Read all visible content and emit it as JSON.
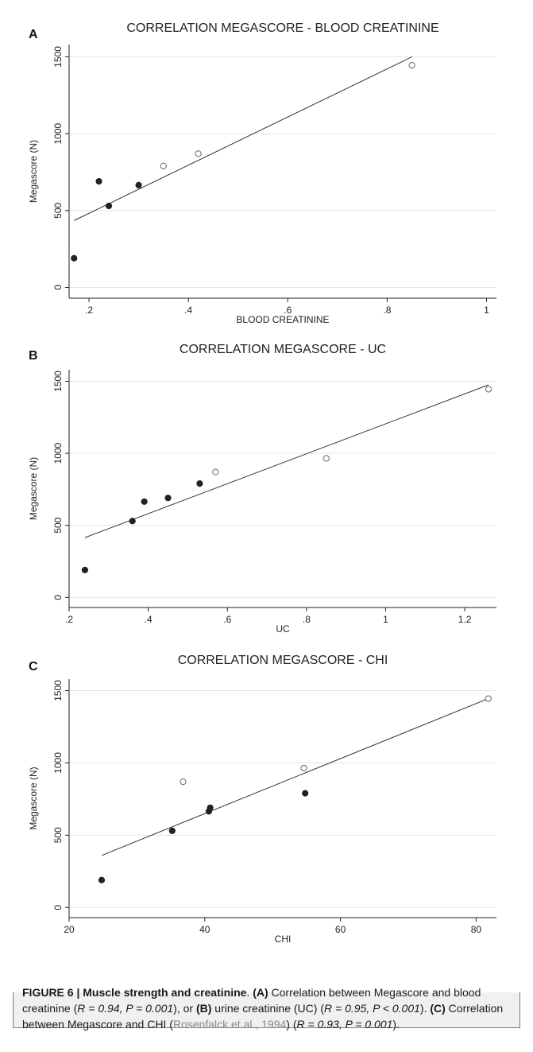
{
  "chart_data": [
    {
      "type": "scatter",
      "panel_letter": "A",
      "title": "CORRELATION MEGASCORE - BLOOD CREATININE",
      "xlabel": "BLOOD CREATININE",
      "ylabel": "Megascore (N)",
      "xlim": [
        0.16,
        1.02
      ],
      "ylim": [
        -70,
        1580
      ],
      "xticks": [
        0.2,
        0.4,
        0.6,
        0.8,
        1
      ],
      "xtick_labels": [
        ".2",
        ".4",
        ".6",
        ".8",
        "1"
      ],
      "yticks": [
        0,
        500,
        1000,
        1500
      ],
      "ytick_labels": [
        "0",
        "500",
        "1000",
        "1500"
      ],
      "grid": "horizontal",
      "series": [
        {
          "marker": "filled",
          "points": [
            [
              0.17,
              190
            ],
            [
              0.22,
              690
            ],
            [
              0.24,
              530
            ],
            [
              0.3,
              665
            ]
          ]
        },
        {
          "marker": "open",
          "points": [
            [
              0.35,
              790
            ],
            [
              0.42,
              870
            ],
            [
              0.85,
              1445
            ]
          ]
        }
      ],
      "fit_line": [
        [
          0.17,
          435
        ],
        [
          0.85,
          1500
        ]
      ]
    },
    {
      "type": "scatter",
      "panel_letter": "B",
      "title": "CORRELATION MEGASCORE - UC",
      "xlabel": "UC",
      "ylabel": "Megascore (N)",
      "xlim": [
        0.2,
        1.28
      ],
      "ylim": [
        -70,
        1580
      ],
      "xticks": [
        0.2,
        0.4,
        0.6,
        0.8,
        1,
        1.2
      ],
      "xtick_labels": [
        ".2",
        ".4",
        ".6",
        ".8",
        "1",
        "1.2"
      ],
      "yticks": [
        0,
        500,
        1000,
        1500
      ],
      "ytick_labels": [
        "0",
        "500",
        "1000",
        "1500"
      ],
      "grid": "horizontal",
      "series": [
        {
          "marker": "filled",
          "points": [
            [
              0.24,
              190
            ],
            [
              0.36,
              530
            ],
            [
              0.39,
              665
            ],
            [
              0.45,
              690
            ],
            [
              0.53,
              790
            ]
          ]
        },
        {
          "marker": "open",
          "points": [
            [
              0.57,
              870
            ],
            [
              0.85,
              965
            ],
            [
              1.26,
              1445
            ]
          ]
        }
      ],
      "fit_line": [
        [
          0.24,
          415
        ],
        [
          1.26,
          1475
        ]
      ]
    },
    {
      "type": "scatter",
      "panel_letter": "C",
      "title": "CORRELATION MEGASCORE - CHI",
      "xlabel": "CHI",
      "ylabel": "Megascore (N)",
      "xlim": [
        20,
        83
      ],
      "ylim": [
        -70,
        1580
      ],
      "xticks": [
        20,
        40,
        60,
        80
      ],
      "xtick_labels": [
        "20",
        "40",
        "60",
        "80"
      ],
      "yticks": [
        0,
        500,
        1000,
        1500
      ],
      "ytick_labels": [
        "0",
        "500",
        "1000",
        "1500"
      ],
      "grid": "horizontal",
      "series": [
        {
          "marker": "filled",
          "points": [
            [
              24.8,
              190
            ],
            [
              35.2,
              530
            ],
            [
              40.6,
              665
            ],
            [
              40.8,
              690
            ],
            [
              54.8,
              790
            ]
          ]
        },
        {
          "marker": "open",
          "points": [
            [
              36.8,
              870
            ],
            [
              54.6,
              965
            ],
            [
              81.8,
              1445
            ]
          ]
        }
      ],
      "fit_line": [
        [
          24.8,
          360
        ],
        [
          81.8,
          1445
        ]
      ]
    }
  ],
  "caption": {
    "figure_label": "FIGURE 6 | Muscle strength and creatinine",
    "after_label": ". ",
    "a_label": "(A)",
    "text_1": " Correlation between Megascore and blood creatinine (",
    "stat_1": "R = 0.94, P = 0.001",
    "text_2": "), or ",
    "b_label": "(B)",
    "text_3": " urine creatinine (UC) (",
    "stat_2": "R = 0.95, P < 0.001",
    "text_4": "). ",
    "c_label": "(C)",
    "text_5": " Correlation between Megascore and CHI (",
    "reference": "Rosenfalck et al., 1994",
    "text_6": ") (",
    "stat_3": "R = 0.93, P = 0.001",
    "text_7": ")."
  }
}
